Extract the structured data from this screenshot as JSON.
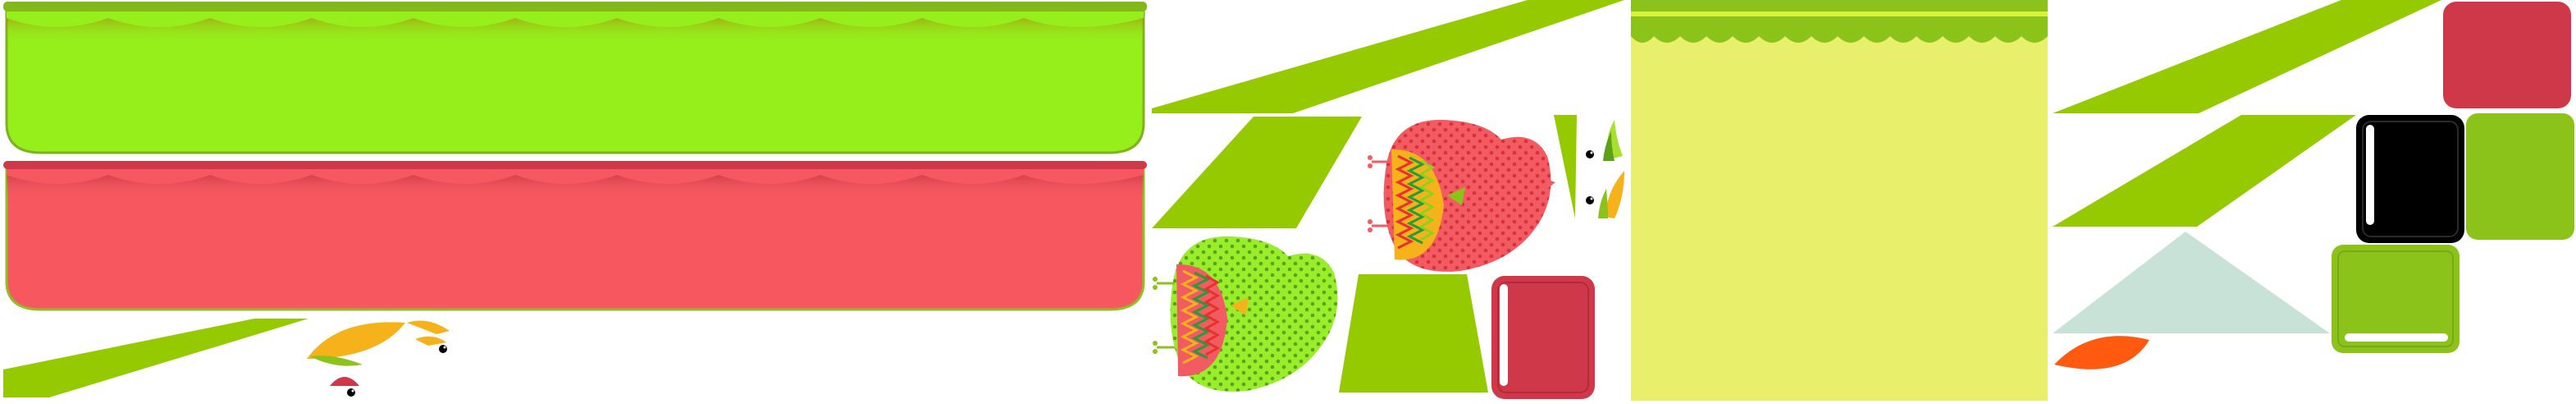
{
  "sheet": {
    "type": "sprite-atlas",
    "background": "#ffffff"
  },
  "palette": {
    "lime": "#96ee1a",
    "lime_dark": "#8fbf22",
    "olive_green": "#8bc31a",
    "red_panel": "#f75860",
    "crimson": "#cf3849",
    "yellow_panel": "#e8ef6a",
    "yellow_band": "#d8f23a",
    "orange": "#f5b21a",
    "orange_red": "#ff5a10",
    "pale_teal": "#c8e2d8",
    "black": "#000000",
    "white": "#ffffff"
  },
  "sprites": [
    {
      "name": "lime-awning-panel",
      "color": "lime"
    },
    {
      "name": "red-awning-panel",
      "color": "red_panel"
    },
    {
      "name": "yellow-backdrop-panel",
      "color": "yellow_panel"
    },
    {
      "name": "red-dotted-bird",
      "color": "crimson"
    },
    {
      "name": "green-dotted-bird",
      "color": "lime"
    },
    {
      "name": "red-square-button",
      "color": "crimson"
    },
    {
      "name": "black-square-button",
      "color": "black"
    },
    {
      "name": "green-square-button",
      "color": "olive_green"
    },
    {
      "name": "pale-teal-triangle",
      "color": "pale_teal"
    },
    {
      "name": "orange-leaf",
      "color": "orange_red"
    }
  ]
}
